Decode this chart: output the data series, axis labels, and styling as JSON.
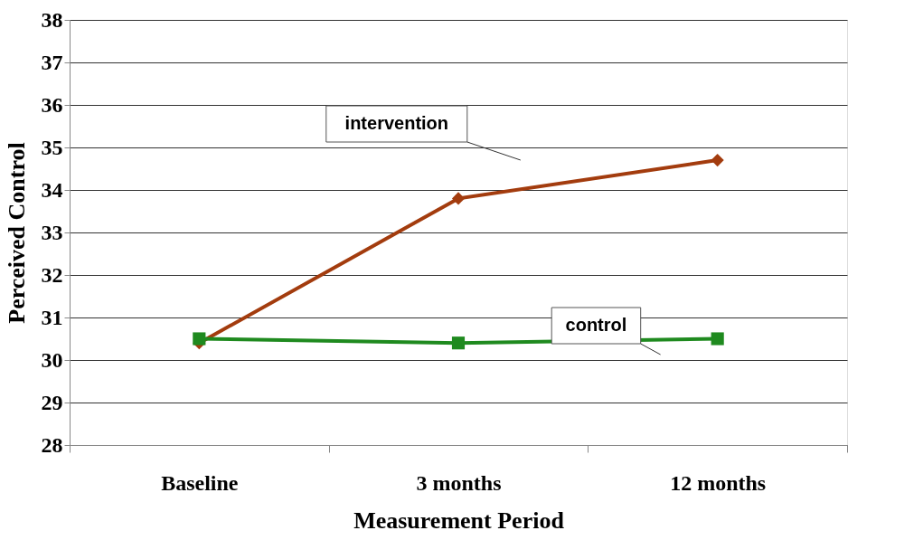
{
  "chart_data": {
    "type": "line",
    "xlabel": "Measurement Period",
    "ylabel": "Perceived Control",
    "categories": [
      "Baseline",
      "3 months",
      "12 months"
    ],
    "series": [
      {
        "name": "intervention",
        "color": "#a33c0e",
        "values": [
          30.4,
          33.8,
          34.7
        ],
        "marker": "diamond"
      },
      {
        "name": "control",
        "color": "#1f8a1f",
        "values": [
          30.5,
          30.4,
          30.5
        ],
        "marker": "square"
      }
    ],
    "ylim": [
      28,
      38
    ],
    "yticks": [
      28,
      29,
      30,
      31,
      32,
      33,
      34,
      35,
      36,
      37,
      38
    ],
    "grid": "y",
    "line_style": "solid"
  }
}
